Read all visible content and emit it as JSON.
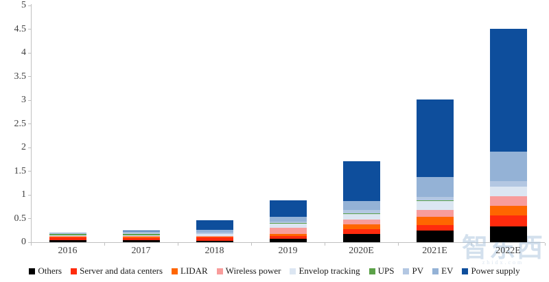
{
  "watermark": {
    "brand": "智东西",
    "domain": "zhidx.com"
  },
  "chart_data": {
    "type": "bar",
    "stacked": true,
    "title": "",
    "xlabel": "",
    "ylabel": "",
    "categories": [
      "2016",
      "2017",
      "2018",
      "2019",
      "2020E",
      "2021E",
      "2022E"
    ],
    "series": [
      {
        "name": "Others",
        "color": "#000000",
        "values": [
          0.05,
          0.04,
          0.03,
          0.07,
          0.18,
          0.24,
          0.34
        ]
      },
      {
        "name": "Server and data centers",
        "color": "#ff2b0d",
        "values": [
          0.05,
          0.05,
          0.07,
          0.06,
          0.1,
          0.12,
          0.22
        ]
      },
      {
        "name": "LIDAR",
        "color": "#ff6600",
        "values": [
          0.02,
          0.03,
          0.02,
          0.05,
          0.1,
          0.17,
          0.21
        ]
      },
      {
        "name": "Wireless power",
        "color": "#f89c9b",
        "values": [
          0.01,
          0.01,
          0.01,
          0.13,
          0.1,
          0.15,
          0.2
        ]
      },
      {
        "name": "Envelop tracking",
        "color": "#dce6f2",
        "values": [
          0.01,
          0.01,
          0.04,
          0.08,
          0.12,
          0.19,
          0.2
        ]
      },
      {
        "name": "UPS",
        "color": "#5ba148",
        "values": [
          0.03,
          0.04,
          0.01,
          0.01,
          0.01,
          0.01,
          0.01
        ]
      },
      {
        "name": "PV",
        "color": "#b3c7e2",
        "values": [
          0.02,
          0.03,
          0.02,
          0.04,
          0.07,
          0.07,
          0.11
        ]
      },
      {
        "name": "EV",
        "color": "#94b2d6",
        "values": [
          0.01,
          0.02,
          0.06,
          0.09,
          0.19,
          0.43,
          0.62
        ]
      },
      {
        "name": "Power supply",
        "color": "#0e4e9c",
        "values": [
          0.01,
          0.01,
          0.2,
          0.36,
          0.84,
          1.63,
          2.6
        ]
      }
    ],
    "totals": [
      0.21,
      0.24,
      0.46,
      0.89,
      1.71,
      3.01,
      4.51
    ],
    "ylim": [
      0,
      5
    ],
    "ytick_step": 0.5,
    "yticks": [
      "0",
      "0.5",
      "1",
      "1.5",
      "2",
      "2.5",
      "3",
      "3.5",
      "4",
      "4.5",
      "5"
    ],
    "grid": false,
    "legend_position": "bottom",
    "axis_color": "#bfbfbf",
    "tick_label_color": "#3f3f3f"
  }
}
